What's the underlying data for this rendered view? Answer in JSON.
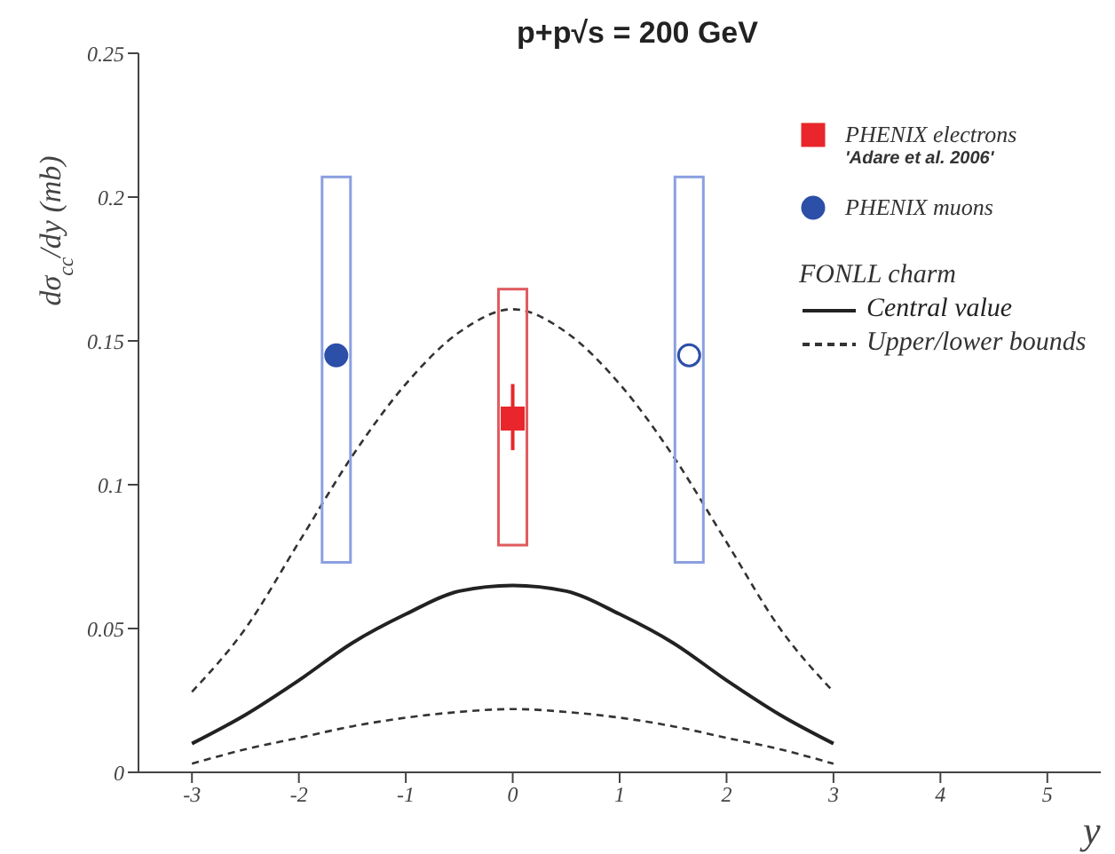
{
  "chart_data": {
    "type": "scatter",
    "title": "p+p√s = 200 GeV",
    "xlabel": "y",
    "ylabel": "dσ$_{cc}$/dy (mb)",
    "legend_title": "FONLL charm",
    "annotations": [
      "'Adare et al. 2006'"
    ],
    "xlim": [
      -3.5,
      5.5
    ],
    "ylim": [
      0,
      0.25
    ],
    "xticks": [
      -3,
      -2,
      -1,
      0,
      1,
      2,
      3,
      4,
      5
    ],
    "yticks": [
      0,
      0.05,
      0.1,
      0.15,
      0.2,
      0.25
    ],
    "legend": "top right",
    "series": [
      {
        "type": "bar",
        "color": "#8aa0e0",
        "x": [
          -1.65,
          1.65
        ],
        "base": [
          0.073,
          0.073
        ],
        "values": [
          0.134,
          0.134
        ]
      },
      {
        "type": "bar",
        "color": "#e05a5e",
        "x": [
          0
        ],
        "base": [
          0.079
        ],
        "values": [
          0.089
        ]
      },
      {
        "type": "line",
        "name": "Central value",
        "color": "#222222",
        "line_style": "solid",
        "marker": "none",
        "x": [
          -3,
          -2.5,
          -2,
          -1.5,
          -1,
          -0.5,
          0,
          0.5,
          1,
          1.5,
          2,
          2.5,
          3
        ],
        "values": [
          0.01,
          0.02,
          0.032,
          0.045,
          0.055,
          0.063,
          0.065,
          0.063,
          0.055,
          0.045,
          0.032,
          0.02,
          0.01
        ]
      },
      {
        "type": "line",
        "name": "Upper/lower bounds",
        "color": "#333333",
        "line_style": "dashed",
        "marker": "none",
        "x": [
          -3,
          -2.5,
          -2,
          -1.5,
          -1,
          -0.5,
          0,
          0.5,
          1,
          1.5,
          2,
          2.5,
          3
        ],
        "values": [
          0.028,
          0.05,
          0.08,
          0.11,
          0.135,
          0.153,
          0.161,
          0.153,
          0.135,
          0.11,
          0.08,
          0.05,
          0.028
        ]
      },
      {
        "type": "line",
        "color": "#333333",
        "line_style": "dashed",
        "marker": "none",
        "x": [
          -3,
          -2.5,
          -2,
          -1.5,
          -1,
          -0.5,
          0,
          0.5,
          1,
          1.5,
          2,
          2.5,
          3
        ],
        "values": [
          0.003,
          0.008,
          0.012,
          0.016,
          0.019,
          0.021,
          0.022,
          0.021,
          0.019,
          0.016,
          0.012,
          0.008,
          0.003
        ]
      },
      {
        "name": "PHENIX electrons",
        "color": "#e8262b",
        "marker": "square",
        "x": [
          0
        ],
        "values": [
          0.123
        ],
        "errors": [
          [
            0.112,
            0.135
          ]
        ]
      },
      {
        "name": "PHENIX muons",
        "color": "#2c4fa8",
        "marker": "circle",
        "x": [
          -1.65
        ],
        "values": [
          0.145
        ]
      },
      {
        "color": "#2c4fa8",
        "colors": [
          "#ffffff"
        ],
        "marker": "circle",
        "x": [
          1.65
        ],
        "values": [
          0.145
        ]
      }
    ]
  }
}
